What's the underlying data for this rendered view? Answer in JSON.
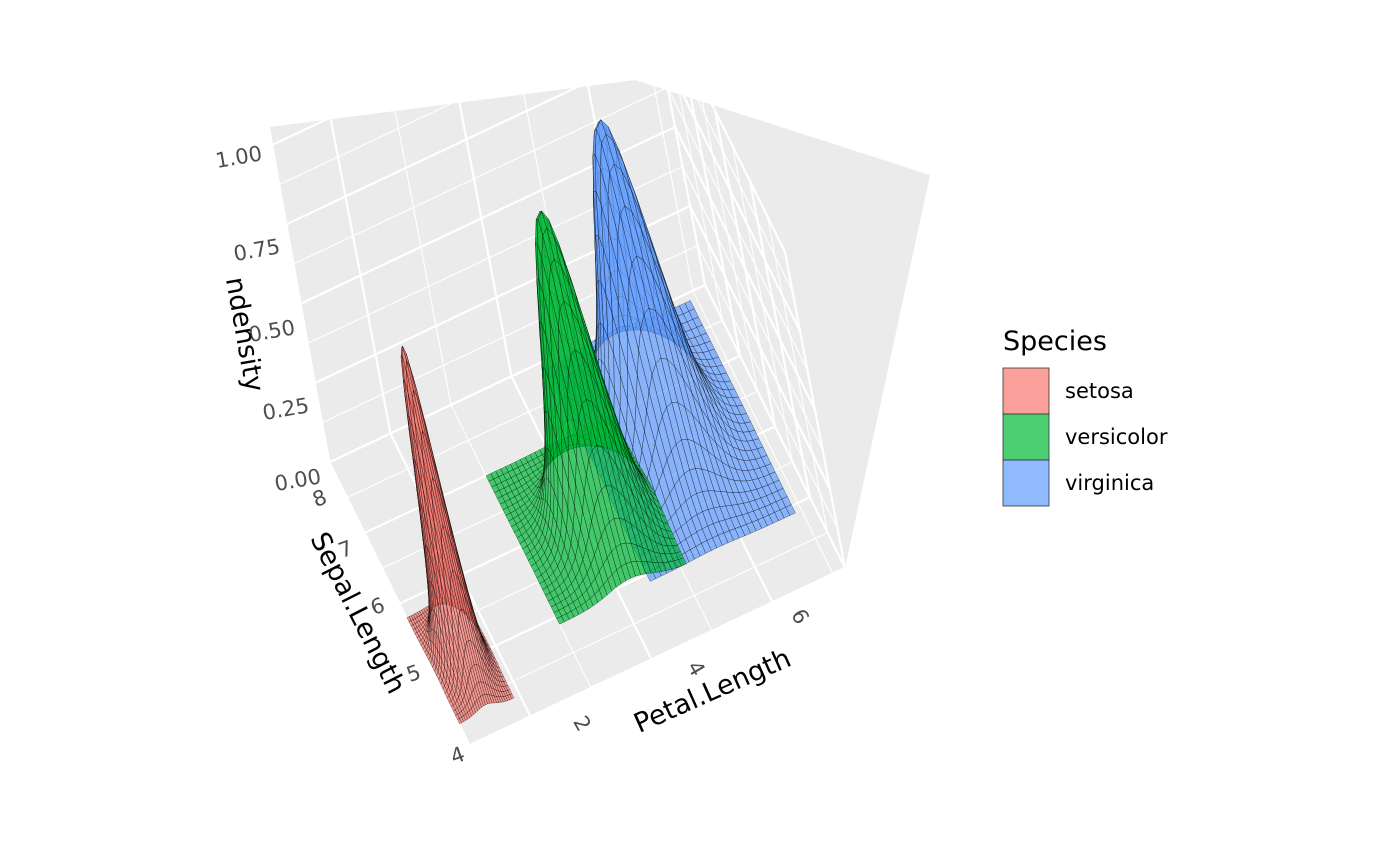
{
  "chart_data": {
    "type": "surface3d",
    "x_axis": {
      "label": "Petal.Length",
      "range": [
        1,
        7.2
      ],
      "ticks": [
        "2",
        "4",
        "6"
      ]
    },
    "y_axis": {
      "label": "Sepal.Length",
      "range": [
        4,
        8
      ],
      "ticks": [
        "4",
        "5",
        "6",
        "7",
        "8"
      ]
    },
    "z_axis": {
      "label": "ndensity",
      "range": [
        0,
        1
      ],
      "ticks": [
        "0.00",
        "0.25",
        "0.50",
        "0.75",
        "1.00"
      ]
    },
    "grid": true,
    "legend": {
      "title": "Species",
      "placement": "right",
      "items": [
        {
          "label": "setosa",
          "color": "#f8766d"
        },
        {
          "label": "versicolor",
          "color": "#00ba38"
        },
        {
          "label": "virginica",
          "color": "#619cff"
        }
      ]
    },
    "series": [
      {
        "name": "setosa",
        "peak_petal_length": 1.45,
        "peak_sepal_length": 5.0,
        "peak_density": 1.0,
        "petal_length_span": [
          1.0,
          1.9
        ],
        "sepal_length_span": [
          4.3,
          5.8
        ]
      },
      {
        "name": "versicolor",
        "peak_petal_length": 4.2,
        "peak_sepal_length": 5.8,
        "peak_density": 1.0,
        "petal_length_span": [
          3.0,
          5.1
        ],
        "sepal_length_span": [
          4.9,
          7.0
        ]
      },
      {
        "name": "virginica",
        "peak_petal_length": 5.6,
        "peak_sepal_length": 6.5,
        "peak_density": 1.0,
        "petal_length_span": [
          4.5,
          6.9
        ],
        "sepal_length_span": [
          4.9,
          7.9
        ]
      }
    ]
  }
}
